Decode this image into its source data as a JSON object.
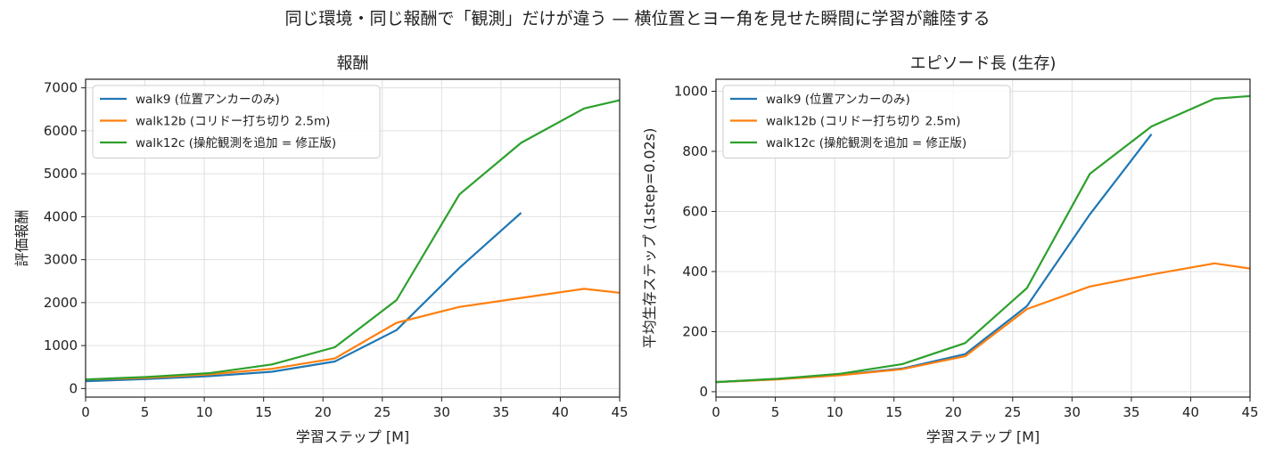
{
  "suptitle": "同じ環境・同じ報酬で「観測」だけが違う — 横位置とヨー角を見せた瞬間に学習が離陸する",
  "colors": {
    "walk9": "#1f77b4",
    "walk12b": "#ff7f0e",
    "walk12c": "#2ca02c",
    "grid": "#e0e0e0"
  },
  "chart_data": [
    {
      "type": "line",
      "title": "報酬",
      "xlabel": "学習ステップ [M]",
      "ylabel": "評価報酬",
      "xlim": [
        0,
        45
      ],
      "ylim": [
        -200,
        7200
      ],
      "xticks": [
        0,
        5,
        10,
        15,
        20,
        25,
        30,
        35,
        40,
        45
      ],
      "yticks": [
        0,
        1000,
        2000,
        3000,
        4000,
        5000,
        6000,
        7000
      ],
      "grid": true,
      "legend": "top-left",
      "series": [
        {
          "name": "walk9 (位置アンカーのみ)",
          "color": "#1f77b4",
          "x": [
            0,
            5.2,
            10.5,
            15.7,
            21,
            26.2,
            31.5,
            36.7
          ],
          "y": [
            170,
            220,
            290,
            390,
            630,
            1360,
            2810,
            4090
          ]
        },
        {
          "name": "walk12b (コリドー打ち切り 2.5m)",
          "color": "#ff7f0e",
          "x": [
            0,
            5.2,
            10.5,
            15.7,
            21,
            26.2,
            31.5,
            36.7,
            42,
            45
          ],
          "y": [
            210,
            250,
            330,
            460,
            700,
            1530,
            1900,
            2110,
            2320,
            2230
          ]
        },
        {
          "name": "walk12c (操舵観測を追加 = 修正版)",
          "color": "#2ca02c",
          "x": [
            0,
            5.2,
            10.5,
            15.7,
            21,
            26.2,
            31.5,
            36.7,
            42,
            45
          ],
          "y": [
            210,
            270,
            360,
            560,
            960,
            2060,
            4520,
            5720,
            6520,
            6710
          ]
        }
      ]
    },
    {
      "type": "line",
      "title": "エピソード長 (生存)",
      "xlabel": "学習ステップ [M]",
      "ylabel": "平均生存ステップ (1step=0.02s)",
      "xlim": [
        0,
        45
      ],
      "ylim": [
        -18,
        1040
      ],
      "xticks": [
        0,
        5,
        10,
        15,
        20,
        25,
        30,
        35,
        40,
        45
      ],
      "yticks": [
        0,
        200,
        400,
        600,
        800,
        1000
      ],
      "grid": true,
      "legend": "top-left",
      "series": [
        {
          "name": "walk9 (位置アンカーのみ)",
          "color": "#1f77b4",
          "x": [
            0,
            5.2,
            10.5,
            15.7,
            21,
            26.2,
            31.5,
            36.7
          ],
          "y": [
            32,
            42,
            56,
            77,
            125,
            285,
            590,
            857
          ]
        },
        {
          "name": "walk12b (コリドー打ち切り 2.5m)",
          "color": "#ff7f0e",
          "x": [
            0,
            5.2,
            10.5,
            15.7,
            21,
            26.2,
            31.5,
            36.7,
            42,
            45
          ],
          "y": [
            32,
            41,
            55,
            75,
            118,
            275,
            350,
            390,
            427,
            410
          ]
        },
        {
          "name": "walk12c (操舵観測を追加 = 修正版)",
          "color": "#2ca02c",
          "x": [
            0,
            5.2,
            10.5,
            15.7,
            21,
            26.2,
            31.5,
            36.7,
            42,
            45
          ],
          "y": [
            32,
            43,
            60,
            92,
            162,
            345,
            725,
            883,
            975,
            984
          ]
        }
      ]
    }
  ]
}
